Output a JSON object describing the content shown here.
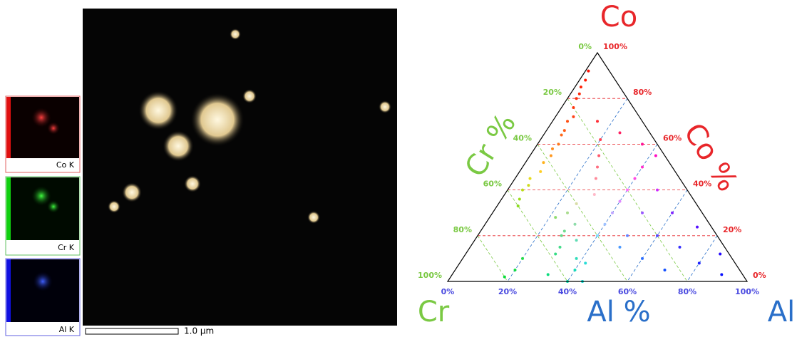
{
  "panels": {
    "co_label": "Co K",
    "cr_label": "Cr K",
    "al_label": "Al K",
    "scale_bar": "1.0 μm"
  },
  "chart_data": {
    "type": "ternary",
    "corner_top": "Co",
    "corner_left": "Cr",
    "corner_right": "Al",
    "co_axis_title": "Co %",
    "cr_axis_title": "Cr %",
    "al_axis_title": "Al %",
    "co_color": "#e8262a",
    "cr_color": "#7ac943",
    "al_color": "#2a6fc9",
    "grid": true,
    "co_ticks": [
      {
        "value": 0,
        "label": "0%"
      },
      {
        "value": 20,
        "label": "20%"
      },
      {
        "value": 40,
        "label": "40%"
      },
      {
        "value": 60,
        "label": "60%"
      },
      {
        "value": 80,
        "label": "80%"
      },
      {
        "value": 100,
        "label": "100%"
      }
    ],
    "cr_ticks": [
      {
        "value": 0,
        "label": "0%"
      },
      {
        "value": 20,
        "label": "20%"
      },
      {
        "value": 40,
        "label": "40%"
      },
      {
        "value": 60,
        "label": "60%"
      },
      {
        "value": 80,
        "label": "80%"
      },
      {
        "value": 100,
        "label": "100%"
      }
    ],
    "al_ticks": [
      {
        "value": 0,
        "label": "0%"
      },
      {
        "value": 20,
        "label": "20%"
      },
      {
        "value": 40,
        "label": "40%"
      },
      {
        "value": 60,
        "label": "60%"
      },
      {
        "value": 80,
        "label": "80%"
      },
      {
        "value": 100,
        "label": "100%"
      }
    ],
    "points": [
      [
        92,
        7,
        1
      ],
      [
        88,
        10,
        2
      ],
      [
        85,
        13,
        2
      ],
      [
        82,
        15,
        3
      ],
      [
        80,
        17,
        3
      ],
      [
        76,
        20,
        4
      ],
      [
        72,
        22,
        6
      ],
      [
        70,
        25,
        5
      ],
      [
        66,
        28,
        6
      ],
      [
        64,
        30,
        6
      ],
      [
        60,
        33,
        7
      ],
      [
        58,
        36,
        6
      ],
      [
        55,
        38,
        7
      ],
      [
        52,
        42,
        6
      ],
      [
        48,
        45,
        7
      ],
      [
        45,
        50,
        5
      ],
      [
        42,
        52,
        6
      ],
      [
        40,
        55,
        5
      ],
      [
        36,
        58,
        6
      ],
      [
        33,
        60,
        7
      ],
      [
        70,
        15,
        15
      ],
      [
        62,
        18,
        20
      ],
      [
        55,
        22,
        23
      ],
      [
        50,
        25,
        25
      ],
      [
        45,
        28,
        27
      ],
      [
        38,
        32,
        30
      ],
      [
        34,
        40,
        26
      ],
      [
        30,
        45,
        25
      ],
      [
        28,
        50,
        22
      ],
      [
        25,
        45,
        30
      ],
      [
        22,
        50,
        28
      ],
      [
        20,
        52,
        28
      ],
      [
        18,
        48,
        34
      ],
      [
        15,
        55,
        30
      ],
      [
        12,
        58,
        30
      ],
      [
        10,
        52,
        38
      ],
      [
        8,
        50,
        42
      ],
      [
        5,
        55,
        40
      ],
      [
        20,
        40,
        40
      ],
      [
        25,
        35,
        40
      ],
      [
        30,
        30,
        40
      ],
      [
        35,
        25,
        40
      ],
      [
        40,
        20,
        40
      ],
      [
        45,
        15,
        40
      ],
      [
        50,
        10,
        40
      ],
      [
        15,
        35,
        50
      ],
      [
        20,
        30,
        50
      ],
      [
        30,
        20,
        50
      ],
      [
        40,
        10,
        50
      ],
      [
        10,
        30,
        60
      ],
      [
        20,
        20,
        60
      ],
      [
        30,
        10,
        60
      ],
      [
        5,
        25,
        70
      ],
      [
        15,
        15,
        70
      ],
      [
        25,
        5,
        75
      ],
      [
        8,
        12,
        80
      ],
      [
        3,
        7,
        90
      ],
      [
        12,
        3,
        85
      ],
      [
        60,
        5,
        35
      ],
      [
        55,
        3,
        42
      ],
      [
        65,
        10,
        25
      ],
      [
        2,
        80,
        18
      ],
      [
        5,
        75,
        20
      ],
      [
        10,
        70,
        20
      ],
      [
        3,
        65,
        32
      ],
      [
        0,
        60,
        40
      ],
      [
        0,
        55,
        45
      ]
    ]
  }
}
